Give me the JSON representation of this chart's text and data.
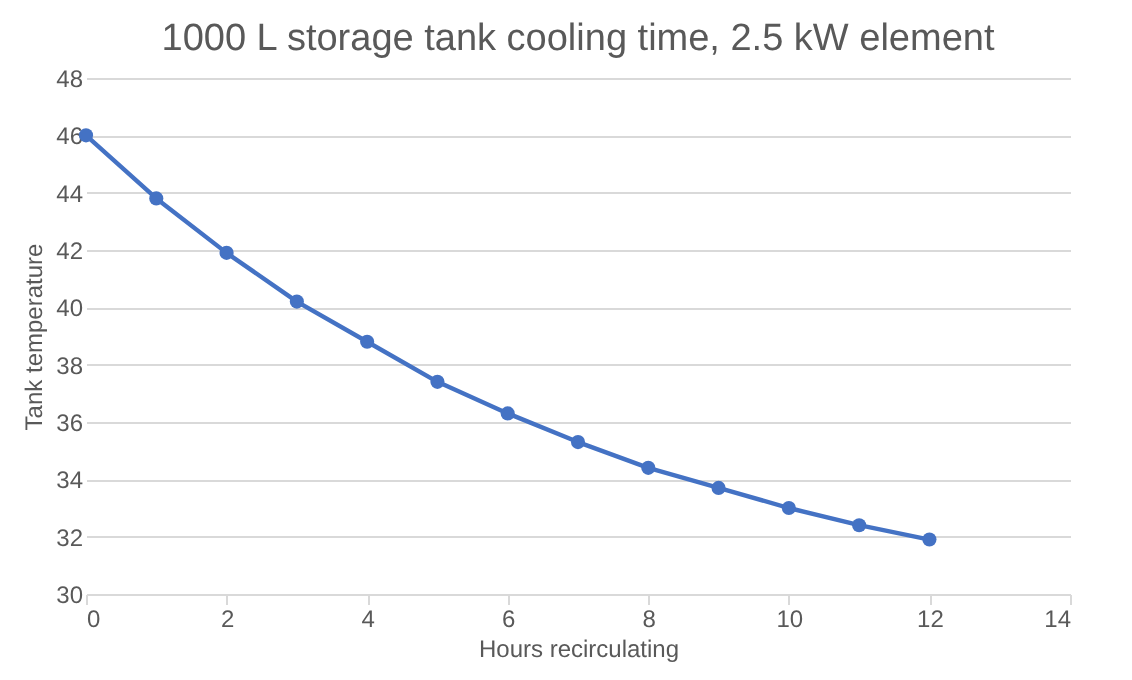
{
  "chart_data": {
    "type": "line",
    "title": "1000 L storage tank cooling time, 2.5 kW element",
    "xlabel": "Hours recirculating",
    "ylabel": "Tank temperature",
    "x": [
      0,
      1,
      2,
      3,
      4,
      5,
      6,
      7,
      8,
      9,
      10,
      11,
      12
    ],
    "series": [
      {
        "color": "#4472c4",
        "values": [
          46,
          43.8,
          41.9,
          40.2,
          38.8,
          37.4,
          36.3,
          35.3,
          34.4,
          33.7,
          33.0,
          32.4,
          31.9
        ]
      }
    ],
    "xlim": [
      0,
      14
    ],
    "xticks": [
      0,
      2,
      4,
      6,
      8,
      10,
      12,
      14
    ],
    "ylim": [
      30,
      48
    ],
    "yticks": [
      30,
      32,
      34,
      36,
      38,
      40,
      42,
      44,
      46,
      48
    ],
    "grid": "y",
    "marker": "circle",
    "line_style": "solid"
  }
}
